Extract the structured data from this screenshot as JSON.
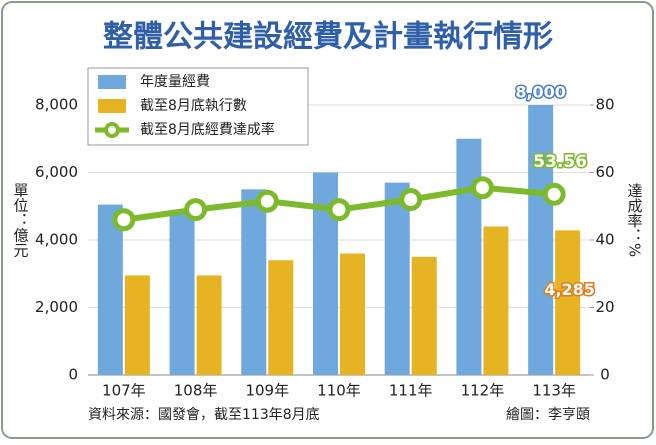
{
  "chart_data": {
    "type": "bar_line",
    "title": "整體公共建設經費及計畫執行情形",
    "y_label": "單位：億元",
    "y2_label": "達成率：%",
    "categories": [
      "107年",
      "108年",
      "109年",
      "110年",
      "111年",
      "112年",
      "113年"
    ],
    "series": [
      {
        "name": "年度量經費",
        "type": "bar",
        "color": "#6fa8dc",
        "values": [
          5050,
          4800,
          5500,
          6000,
          5700,
          7000,
          8000
        ],
        "value_labels": [
          null,
          null,
          null,
          null,
          null,
          null,
          "8,000"
        ]
      },
      {
        "name": "截至8月底執行數",
        "type": "bar",
        "color": "#e6b323",
        "values": [
          2950,
          2950,
          3400,
          3600,
          3500,
          4400,
          4285
        ],
        "value_labels": [
          null,
          null,
          null,
          null,
          null,
          null,
          "4,285"
        ]
      },
      {
        "name": "截至8月底經費達成率",
        "type": "line",
        "axis": "y2",
        "color": "#7cba2c",
        "values": [
          46,
          49,
          51.5,
          49,
          52,
          55.5,
          53.56
        ],
        "value_labels": [
          null,
          null,
          null,
          null,
          null,
          null,
          "53.56"
        ]
      }
    ],
    "ylim": [
      0,
      8000
    ],
    "yticks": [
      0,
      {
        "value": 2000,
        "label": "2,000"
      },
      {
        "value": 4000,
        "label": "4,000"
      },
      {
        "value": 6000,
        "label": "6,000"
      },
      {
        "value": 8000,
        "label": "8,000"
      }
    ],
    "y2lim": [
      0,
      80
    ],
    "y2ticks": [
      0,
      20,
      40,
      60,
      80
    ],
    "source": "資料來源：國發會，截至113年8月底",
    "credit": "繪圖：李亨頤"
  }
}
